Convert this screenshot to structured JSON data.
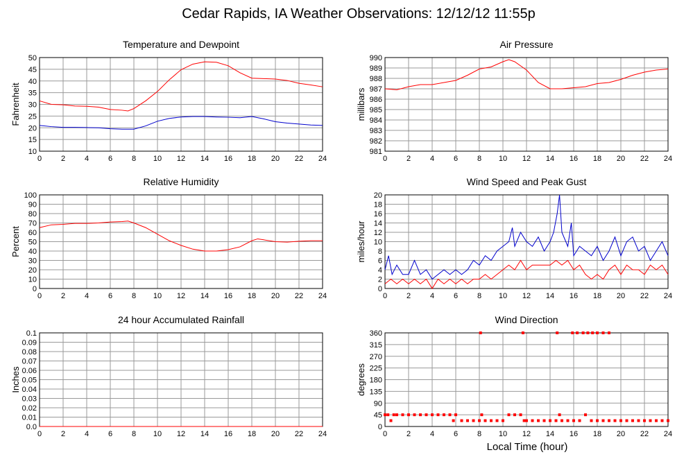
{
  "page": {
    "title": "Cedar Rapids, IA Weather Observations: 12/12/12 11:55p",
    "xlabel": "Local Time (hour)"
  },
  "colors": {
    "red": "#ff0000",
    "blue": "#0000cc",
    "grid": "#999999",
    "axis": "#000000"
  },
  "chart_data": [
    {
      "id": "temp",
      "type": "line",
      "title": "Temperature and Dewpoint",
      "ylabel": "Fahrenheit",
      "xlim": [
        0,
        24
      ],
      "ylim": [
        10,
        50
      ],
      "x_ticks": [
        0,
        2,
        4,
        6,
        8,
        10,
        12,
        14,
        16,
        18,
        20,
        22,
        24
      ],
      "y_ticks": [
        10,
        15,
        20,
        25,
        30,
        35,
        40,
        45,
        50
      ],
      "series": [
        {
          "color": "red",
          "x": [
            0,
            1,
            2,
            3,
            4,
            5,
            6,
            7,
            7.5,
            8,
            9,
            10,
            11,
            12,
            13,
            14,
            15,
            16,
            17,
            18,
            19,
            20,
            21,
            22,
            23,
            24
          ],
          "values": [
            31.5,
            30,
            29.8,
            29.3,
            29.2,
            28.8,
            27.8,
            27.5,
            27.2,
            28.2,
            31.5,
            35.5,
            40.5,
            44.8,
            47.2,
            48.2,
            48,
            46.5,
            43.5,
            41.2,
            41,
            40.8,
            40.2,
            39,
            38.3,
            37.5
          ]
        },
        {
          "color": "blue",
          "x": [
            0,
            1,
            2,
            3,
            4,
            5,
            6,
            7,
            8,
            9,
            10,
            11,
            12,
            13,
            14,
            15,
            16,
            17,
            18,
            19,
            20,
            21,
            22,
            23,
            24
          ],
          "values": [
            21,
            20.5,
            20.2,
            20.2,
            20.1,
            20,
            19.6,
            19.4,
            19.4,
            20.8,
            22.8,
            24,
            24.6,
            24.8,
            24.8,
            24.6,
            24.5,
            24.3,
            24.8,
            23.8,
            22.6,
            22,
            21.6,
            21.2,
            21
          ]
        }
      ]
    },
    {
      "id": "pressure",
      "type": "line",
      "title": "Air Pressure",
      "ylabel": "millibars",
      "xlim": [
        0,
        24
      ],
      "ylim": [
        981,
        990
      ],
      "x_ticks": [
        0,
        2,
        4,
        6,
        8,
        10,
        12,
        14,
        16,
        18,
        20,
        22,
        24
      ],
      "y_ticks": [
        981,
        982,
        983,
        984,
        985,
        986,
        987,
        988,
        989,
        990
      ],
      "series": [
        {
          "color": "red",
          "x": [
            0,
            1,
            2,
            3,
            4,
            5,
            6,
            7,
            8,
            9,
            10,
            10.5,
            11,
            12,
            13,
            14,
            15,
            16,
            17,
            18,
            19,
            20,
            21,
            22,
            23,
            24
          ],
          "values": [
            987,
            986.9,
            987.2,
            987.4,
            987.4,
            987.6,
            987.8,
            988.3,
            988.9,
            989.1,
            989.6,
            989.8,
            989.6,
            988.8,
            987.6,
            987,
            987,
            987.1,
            987.2,
            987.5,
            987.6,
            987.9,
            988.3,
            988.6,
            988.8,
            988.9
          ]
        }
      ]
    },
    {
      "id": "rh",
      "type": "line",
      "title": "Relative Humidity",
      "ylabel": "Percent",
      "xlim": [
        0,
        24
      ],
      "ylim": [
        0,
        100
      ],
      "x_ticks": [
        0,
        2,
        4,
        6,
        8,
        10,
        12,
        14,
        16,
        18,
        20,
        22,
        24
      ],
      "y_ticks": [
        0,
        10,
        20,
        30,
        40,
        50,
        60,
        70,
        80,
        90,
        100
      ],
      "series": [
        {
          "color": "red",
          "x": [
            0,
            1,
            2,
            3,
            4,
            5,
            6,
            7,
            7.5,
            8,
            9,
            10,
            11,
            12,
            13,
            14,
            15,
            16,
            17,
            18,
            18.5,
            19,
            20,
            21,
            22,
            23,
            24
          ],
          "values": [
            65,
            68,
            68.5,
            69.5,
            69.5,
            70,
            71,
            71.5,
            72,
            70,
            65,
            58,
            51,
            46,
            42,
            40,
            40,
            41.5,
            44.5,
            51,
            53,
            52,
            50,
            49.5,
            50.5,
            51,
            51
          ]
        }
      ]
    },
    {
      "id": "wind",
      "type": "line",
      "title": "Wind Speed and Peak Gust",
      "ylabel": "miles/hour",
      "xlim": [
        0,
        24
      ],
      "ylim": [
        0,
        20
      ],
      "x_ticks": [
        0,
        2,
        4,
        6,
        8,
        10,
        12,
        14,
        16,
        18,
        20,
        22,
        24
      ],
      "y_ticks": [
        0,
        2,
        4,
        6,
        8,
        10,
        12,
        14,
        16,
        18,
        20
      ],
      "series": [
        {
          "color": "blue",
          "x": [
            0,
            0.3,
            0.6,
            1,
            1.5,
            2,
            2.5,
            3,
            3.5,
            4,
            4.5,
            5,
            5.5,
            6,
            6.5,
            7,
            7.5,
            8,
            8.5,
            9,
            9.5,
            10,
            10.5,
            10.8,
            11,
            11.5,
            12,
            12.5,
            13,
            13.5,
            14,
            14.3,
            14.6,
            14.8,
            15,
            15.5,
            15.8,
            16,
            16.5,
            17,
            17.5,
            18,
            18.5,
            19,
            19.5,
            20,
            20.5,
            21,
            21.5,
            22,
            22.5,
            23,
            23.5,
            24
          ],
          "values": [
            4,
            7,
            3,
            5,
            3,
            3,
            6,
            3,
            4,
            2,
            3,
            4,
            3,
            4,
            3,
            4,
            6,
            5,
            7,
            6,
            8,
            9,
            10,
            13,
            9,
            12,
            10,
            9,
            11,
            8,
            10,
            12,
            16,
            20,
            12,
            9,
            14,
            7,
            9,
            8,
            7,
            9,
            6,
            8,
            11,
            7,
            10,
            11,
            8,
            9,
            6,
            8,
            10,
            7
          ]
        },
        {
          "color": "red",
          "x": [
            0,
            0.5,
            1,
            1.5,
            2,
            2.5,
            3,
            3.5,
            4,
            4.5,
            5,
            5.5,
            6,
            6.5,
            7,
            7.5,
            8,
            8.5,
            9,
            9.5,
            10,
            10.5,
            11,
            11.5,
            12,
            12.5,
            13,
            13.5,
            14,
            14.5,
            15,
            15.5,
            16,
            16.5,
            17,
            17.5,
            18,
            18.5,
            19,
            19.5,
            20,
            20.5,
            21,
            21.5,
            22,
            22.5,
            23,
            23.5,
            24
          ],
          "values": [
            1,
            2,
            1,
            2,
            1,
            2,
            1,
            2,
            0,
            2,
            1,
            2,
            1,
            2,
            1,
            2,
            2,
            3,
            2,
            3,
            4,
            5,
            4,
            6,
            4,
            5,
            5,
            5,
            5,
            6,
            5,
            6,
            4,
            5,
            3,
            2,
            3,
            2,
            4,
            5,
            3,
            5,
            4,
            4,
            3,
            5,
            4,
            5,
            3
          ]
        }
      ]
    },
    {
      "id": "rain",
      "type": "line",
      "title": "24 hour Accumulated Rainfall",
      "ylabel": "Inches",
      "xlim": [
        0,
        24
      ],
      "ylim": [
        0,
        0.1
      ],
      "x_ticks": [
        0,
        2,
        4,
        6,
        8,
        10,
        12,
        14,
        16,
        18,
        20,
        22,
        24
      ],
      "y_ticks": [
        "0.0",
        "0.01",
        "0.02",
        "0.03",
        "0.04",
        "0.05",
        "0.06",
        "0.07",
        "0.08",
        "0.09",
        "0.1"
      ],
      "series": [
        {
          "color": "red",
          "x": [
            0,
            24
          ],
          "values": [
            0,
            0
          ]
        }
      ]
    },
    {
      "id": "dir",
      "type": "scatter",
      "title": "Wind Direction",
      "ylabel": "degrees",
      "xlim": [
        0,
        24
      ],
      "ylim": [
        0,
        360
      ],
      "x_ticks": [
        0,
        2,
        4,
        6,
        8,
        10,
        12,
        14,
        16,
        18,
        20,
        22,
        24
      ],
      "y_ticks": [
        0,
        45,
        90,
        135,
        180,
        225,
        270,
        315,
        360
      ],
      "series": [
        {
          "color": "red",
          "x": [
            0,
            0.25,
            0.5,
            0.75,
            1,
            1.5,
            2,
            2.5,
            3,
            3.5,
            4,
            4.5,
            5,
            5.5,
            5.8,
            6,
            6.5,
            7,
            7.5,
            8,
            8.2,
            8.5,
            9,
            9.5,
            10,
            10.5,
            11,
            11.5,
            11.8,
            12,
            12.5,
            13,
            13.5,
            14,
            14.5,
            14.8,
            15,
            15.5,
            16,
            16.5,
            17,
            17.5,
            18,
            18.5,
            19,
            19.5,
            20,
            20.5,
            21,
            21.5,
            22,
            22.5,
            23,
            23.5,
            24,
            8.1,
            11.7,
            14.6,
            15.9,
            16.3,
            16.8,
            17.2,
            17.6,
            18,
            18.5,
            19
          ],
          "values": [
            45,
            45,
            22.5,
            45,
            45,
            45,
            45,
            45,
            45,
            45,
            45,
            45,
            45,
            45,
            22.5,
            45,
            22.5,
            22.5,
            22.5,
            22.5,
            45,
            22.5,
            22.5,
            22.5,
            22.5,
            45,
            45,
            45,
            22.5,
            22.5,
            22.5,
            22.5,
            22.5,
            22.5,
            22.5,
            45,
            22.5,
            22.5,
            22.5,
            22.5,
            45,
            22.5,
            22.5,
            22.5,
            22.5,
            22.5,
            22.5,
            22.5,
            22.5,
            22.5,
            22.5,
            22.5,
            22.5,
            22.5,
            22.5,
            360,
            360,
            360,
            360,
            360,
            360,
            360,
            360,
            360,
            360,
            360
          ]
        }
      ]
    }
  ]
}
